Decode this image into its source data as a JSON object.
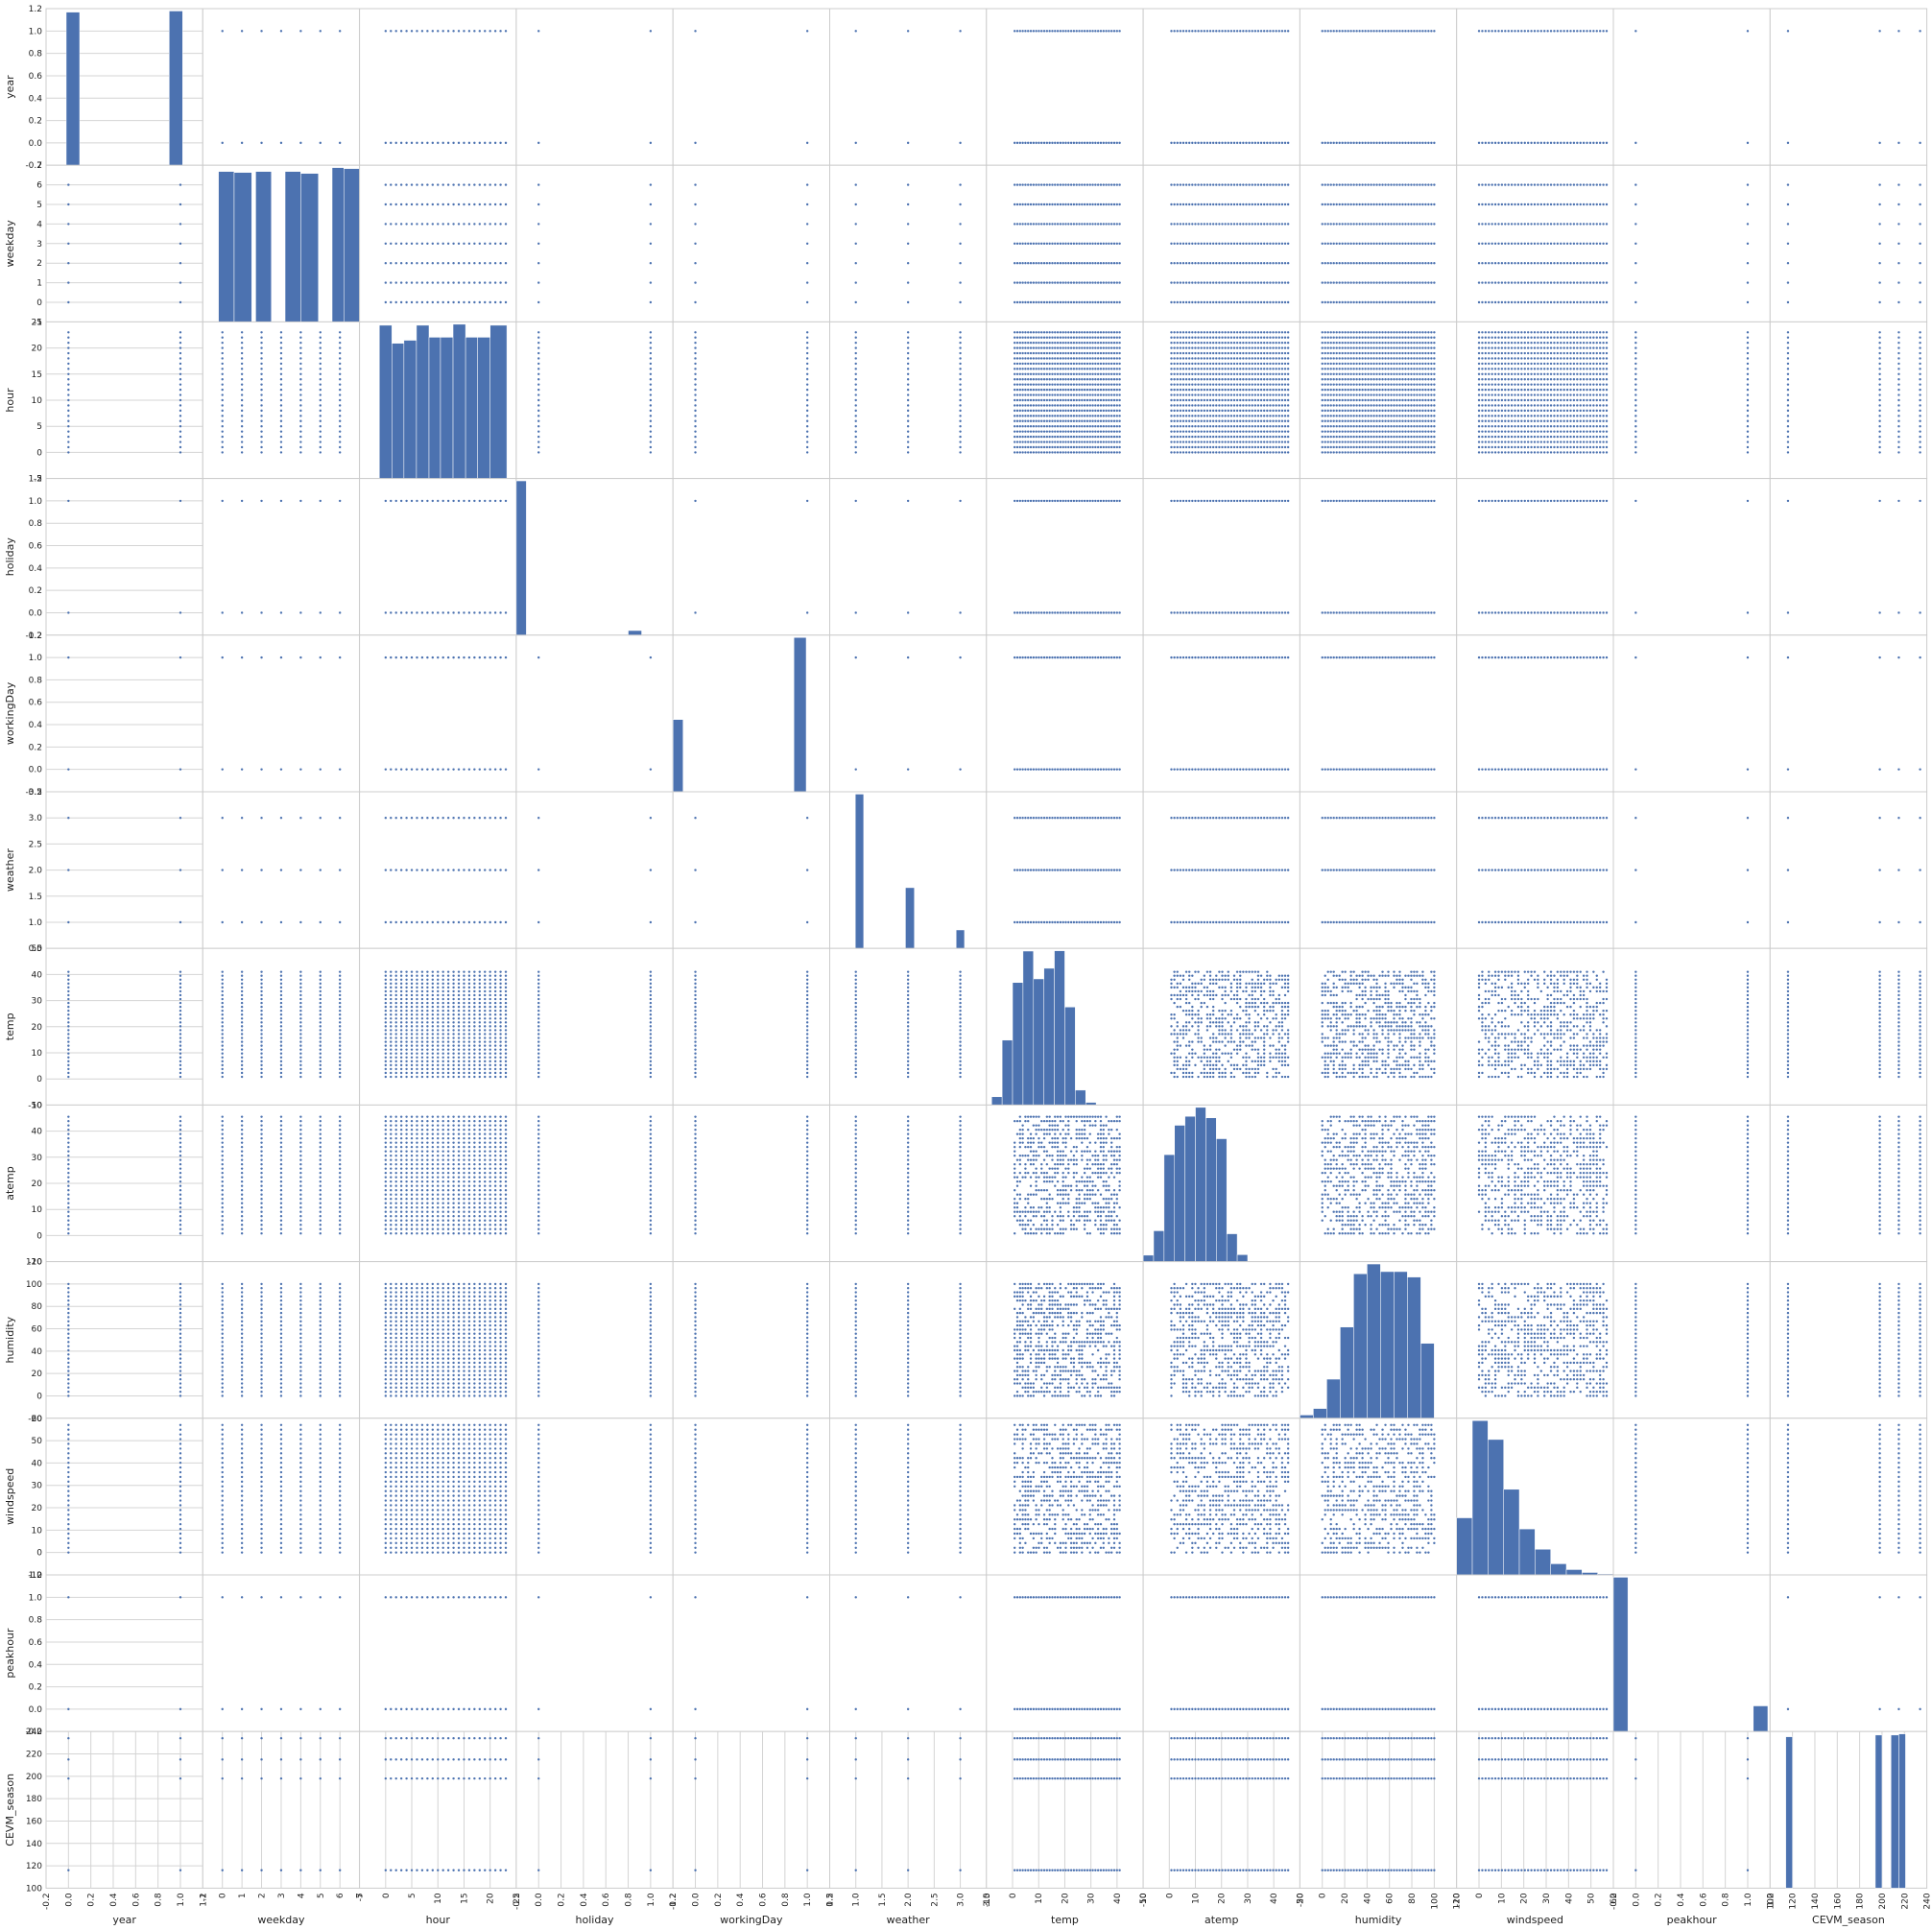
{
  "chart_data": {
    "type": "scatter",
    "subtype": "scatter-matrix",
    "title": "",
    "grid": true,
    "colors": {
      "point": "#4c72b0",
      "bar": "#4c72b0",
      "grid": "#d4d4d4",
      "frame": "#cccccc",
      "background": "#ffffff"
    },
    "variables": [
      {
        "name": "year",
        "kind": "discrete",
        "values": [
          0,
          1
        ],
        "lim": [
          -0.2,
          1.2
        ],
        "ticks": [
          {
            "v": -0.2,
            "label": "-0.2"
          },
          {
            "v": 0.0,
            "label": "0.0"
          },
          {
            "v": 0.2,
            "label": "0.2"
          },
          {
            "v": 0.4,
            "label": "0.4"
          },
          {
            "v": 0.6,
            "label": "0.6"
          },
          {
            "v": 0.8,
            "label": "0.8"
          },
          {
            "v": 1.0,
            "label": "1.0"
          },
          {
            "v": 1.2,
            "label": "1.2"
          }
        ]
      },
      {
        "name": "weekday",
        "kind": "discrete",
        "values": [
          0,
          1,
          2,
          3,
          4,
          5,
          6
        ],
        "lim": [
          -1,
          7
        ],
        "ticks": [
          {
            "v": -1,
            "label": "-1"
          },
          {
            "v": 0,
            "label": "0"
          },
          {
            "v": 1,
            "label": "1"
          },
          {
            "v": 2,
            "label": "2"
          },
          {
            "v": 3,
            "label": "3"
          },
          {
            "v": 4,
            "label": "4"
          },
          {
            "v": 5,
            "label": "5"
          },
          {
            "v": 6,
            "label": "6"
          },
          {
            "v": 7,
            "label": "7"
          }
        ]
      },
      {
        "name": "hour",
        "kind": "discrete",
        "values": [
          0,
          1,
          2,
          3,
          4,
          5,
          6,
          7,
          8,
          9,
          10,
          11,
          12,
          13,
          14,
          15,
          16,
          17,
          18,
          19,
          20,
          21,
          22,
          23
        ],
        "lim": [
          -5,
          25
        ],
        "ticks": [
          {
            "v": -5,
            "label": "-5"
          },
          {
            "v": 0,
            "label": "0"
          },
          {
            "v": 5,
            "label": "5"
          },
          {
            "v": 10,
            "label": "10"
          },
          {
            "v": 15,
            "label": "15"
          },
          {
            "v": 20,
            "label": "20"
          },
          {
            "v": 25,
            "label": "25"
          }
        ]
      },
      {
        "name": "holiday",
        "kind": "discrete",
        "values": [
          0,
          1
        ],
        "lim": [
          -0.2,
          1.2
        ],
        "ticks": [
          {
            "v": -0.2,
            "label": "-0.2"
          },
          {
            "v": 0.0,
            "label": "0.0"
          },
          {
            "v": 0.2,
            "label": "0.2"
          },
          {
            "v": 0.4,
            "label": "0.4"
          },
          {
            "v": 0.6,
            "label": "0.6"
          },
          {
            "v": 0.8,
            "label": "0.8"
          },
          {
            "v": 1.0,
            "label": "1.0"
          },
          {
            "v": 1.2,
            "label": "1.2"
          }
        ]
      },
      {
        "name": "workingDay",
        "kind": "discrete",
        "values": [
          0,
          1
        ],
        "lim": [
          -0.2,
          1.2
        ],
        "ticks": [
          {
            "v": -0.2,
            "label": "-0.2"
          },
          {
            "v": 0.0,
            "label": "0.0"
          },
          {
            "v": 0.2,
            "label": "0.2"
          },
          {
            "v": 0.4,
            "label": "0.4"
          },
          {
            "v": 0.6,
            "label": "0.6"
          },
          {
            "v": 0.8,
            "label": "0.8"
          },
          {
            "v": 1.0,
            "label": "1.0"
          },
          {
            "v": 1.2,
            "label": "1.2"
          }
        ]
      },
      {
        "name": "weather",
        "kind": "discrete",
        "values": [
          1,
          2,
          3
        ],
        "lim": [
          0.5,
          3.5
        ],
        "ticks": [
          {
            "v": 0.5,
            "label": "0.5"
          },
          {
            "v": 1.0,
            "label": "1.0"
          },
          {
            "v": 1.5,
            "label": "1.5"
          },
          {
            "v": 2.0,
            "label": "2.0"
          },
          {
            "v": 2.5,
            "label": "2.5"
          },
          {
            "v": 3.0,
            "label": "3.0"
          },
          {
            "v": 3.5,
            "label": "3.5"
          }
        ]
      },
      {
        "name": "temp",
        "kind": "continuous",
        "range": [
          0.8,
          41
        ],
        "lim": [
          -10,
          50
        ],
        "ticks": [
          {
            "v": -10,
            "label": "-10"
          },
          {
            "v": 0,
            "label": "0"
          },
          {
            "v": 10,
            "label": "10"
          },
          {
            "v": 20,
            "label": "20"
          },
          {
            "v": 30,
            "label": "30"
          },
          {
            "v": 40,
            "label": "40"
          },
          {
            "v": 50,
            "label": "50"
          }
        ]
      },
      {
        "name": "atemp",
        "kind": "continuous",
        "range": [
          0.8,
          45.5
        ],
        "lim": [
          -10,
          50
        ],
        "ticks": [
          {
            "v": -10,
            "label": "-10"
          },
          {
            "v": 0,
            "label": "0"
          },
          {
            "v": 10,
            "label": "10"
          },
          {
            "v": 20,
            "label": "20"
          },
          {
            "v": 30,
            "label": "30"
          },
          {
            "v": 40,
            "label": "40"
          },
          {
            "v": 50,
            "label": "50"
          }
        ]
      },
      {
        "name": "humidity",
        "kind": "continuous",
        "range": [
          0,
          100
        ],
        "lim": [
          -20,
          120
        ],
        "ticks": [
          {
            "v": -20,
            "label": "-20"
          },
          {
            "v": 0,
            "label": "0"
          },
          {
            "v": 20,
            "label": "20"
          },
          {
            "v": 40,
            "label": "40"
          },
          {
            "v": 60,
            "label": "60"
          },
          {
            "v": 80,
            "label": "80"
          },
          {
            "v": 100,
            "label": "100"
          },
          {
            "v": 120,
            "label": "120"
          }
        ]
      },
      {
        "name": "windspeed",
        "kind": "continuous",
        "range": [
          0,
          57
        ],
        "lim": [
          -10,
          60
        ],
        "ticks": [
          {
            "v": -10,
            "label": "-10"
          },
          {
            "v": 0,
            "label": "0"
          },
          {
            "v": 10,
            "label": "10"
          },
          {
            "v": 20,
            "label": "20"
          },
          {
            "v": 30,
            "label": "30"
          },
          {
            "v": 40,
            "label": "40"
          },
          {
            "v": 50,
            "label": "50"
          },
          {
            "v": 60,
            "label": "60"
          }
        ]
      },
      {
        "name": "peakhour",
        "kind": "discrete",
        "values": [
          0,
          1
        ],
        "lim": [
          -0.2,
          1.2
        ],
        "ticks": [
          {
            "v": -0.2,
            "label": "-0.2"
          },
          {
            "v": 0.0,
            "label": "0.0"
          },
          {
            "v": 0.2,
            "label": "0.2"
          },
          {
            "v": 0.4,
            "label": "0.4"
          },
          {
            "v": 0.6,
            "label": "0.6"
          },
          {
            "v": 0.8,
            "label": "0.8"
          },
          {
            "v": 1.0,
            "label": "1.0"
          },
          {
            "v": 1.2,
            "label": "1.2"
          }
        ]
      },
      {
        "name": "CEVM_season",
        "kind": "discrete",
        "values": [
          116,
          198,
          215,
          234
        ],
        "lim": [
          100,
          240
        ],
        "ticks": [
          {
            "v": 100,
            "label": "100"
          },
          {
            "v": 120,
            "label": "120"
          },
          {
            "v": 140,
            "label": "140"
          },
          {
            "v": 160,
            "label": "160"
          },
          {
            "v": 180,
            "label": "180"
          },
          {
            "v": 200,
            "label": "200"
          },
          {
            "v": 220,
            "label": "220"
          },
          {
            "v": 240,
            "label": "240"
          }
        ]
      }
    ],
    "diagonal_histograms": [
      {
        "variable": "year",
        "bins": [
          [
            -0.02,
            0.1,
            5420
          ],
          [
            0.9,
            1.02,
            5460
          ]
        ]
      },
      {
        "variable": "weekday",
        "bins": [
          [
            -0.2,
            0.6,
            1560
          ],
          [
            0.6,
            1.5,
            1550
          ],
          [
            1.7,
            2.5,
            1560
          ],
          [
            3.2,
            4.0,
            1560
          ],
          [
            4.0,
            4.9,
            1540
          ],
          [
            5.6,
            6.2,
            1600
          ],
          [
            6.2,
            7.1,
            1590
          ]
        ]
      },
      {
        "variable": "hour",
        "bins": [
          [
            -1.2,
            1.2,
            1530
          ],
          [
            1.2,
            3.5,
            1350
          ],
          [
            3.5,
            5.9,
            1380
          ],
          [
            5.9,
            8.3,
            1530
          ],
          [
            8.3,
            10.5,
            1410
          ],
          [
            10.5,
            12.9,
            1410
          ],
          [
            12.9,
            15.3,
            1540
          ],
          [
            15.3,
            17.6,
            1410
          ],
          [
            17.6,
            20.0,
            1410
          ],
          [
            20.0,
            23.2,
            1530
          ]
        ]
      },
      {
        "variable": "holiday",
        "bins": [
          [
            -0.23,
            -0.11,
            10400
          ],
          [
            0.8,
            0.92,
            310
          ]
        ]
      },
      {
        "variable": "workingDay",
        "bins": [
          [
            -0.22,
            -0.11,
            3470
          ],
          [
            0.88,
            0.99,
            7410
          ]
        ]
      },
      {
        "variable": "weather",
        "bins": [
          [
            0.99,
            1.15,
            7190
          ],
          [
            1.95,
            2.12,
            2830
          ],
          [
            2.92,
            3.08,
            860
          ]
        ]
      },
      {
        "variable": "temp",
        "bins": [
          [
            -8,
            -4,
            250
          ],
          [
            -4,
            0,
            1960
          ],
          [
            0,
            4,
            3700
          ],
          [
            4,
            8,
            4650
          ],
          [
            8,
            12,
            3810
          ],
          [
            12,
            16,
            4130
          ],
          [
            16,
            20,
            4660
          ],
          [
            20,
            24,
            2960
          ],
          [
            24,
            28,
            450
          ],
          [
            28,
            32,
            80
          ]
        ]
      },
      {
        "variable": "atemp",
        "bins": [
          [
            -10,
            -6,
            130
          ],
          [
            -6,
            -2,
            620
          ],
          [
            -2,
            2,
            2150
          ],
          [
            2,
            6,
            2740
          ],
          [
            6,
            10,
            2920
          ],
          [
            10,
            14,
            3100
          ],
          [
            14,
            18,
            2890
          ],
          [
            18,
            22,
            2470
          ],
          [
            22,
            26,
            560
          ],
          [
            26,
            30,
            140
          ]
        ]
      },
      {
        "variable": "humidity",
        "bins": [
          [
            -20,
            -8,
            30
          ],
          [
            -8,
            4,
            90
          ],
          [
            4,
            16,
            360
          ],
          [
            16,
            28,
            840
          ],
          [
            28,
            40,
            1330
          ],
          [
            40,
            52,
            1420
          ],
          [
            52,
            64,
            1350
          ],
          [
            64,
            76,
            1350
          ],
          [
            76,
            88,
            1300
          ],
          [
            88,
            100,
            690
          ]
        ]
      },
      {
        "variable": "windspeed",
        "bins": [
          [
            -10,
            -3,
            1180
          ],
          [
            -3,
            4,
            3190
          ],
          [
            4,
            11,
            2800
          ],
          [
            11,
            18,
            1770
          ],
          [
            18,
            25,
            950
          ],
          [
            25,
            32,
            530
          ],
          [
            32,
            39,
            230
          ],
          [
            39,
            46,
            110
          ],
          [
            46,
            53,
            50
          ],
          [
            53,
            60,
            20
          ]
        ]
      },
      {
        "variable": "peakhour",
        "bins": [
          [
            -0.2,
            -0.07,
            9330
          ],
          [
            1.05,
            1.18,
            1550
          ]
        ]
      },
      {
        "variable": "CEVM_season",
        "bins": [
          [
            114,
            120,
            2640
          ],
          [
            194,
            200,
            2670
          ],
          [
            208,
            215,
            2670
          ],
          [
            215,
            221,
            2690
          ]
        ]
      }
    ]
  }
}
